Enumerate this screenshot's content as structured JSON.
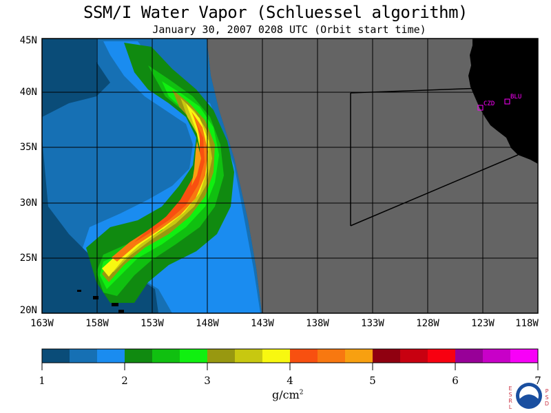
{
  "title": "SSM/I Water Vapor (Schluessel algorithm)",
  "subtitle": "January 30, 2007  0208 UTC  (Orbit start time)",
  "lat_labels": [
    "45N",
    "40N",
    "35N",
    "30N",
    "25N",
    "20N"
  ],
  "lon_labels": [
    "163W",
    "158W",
    "153W",
    "148W",
    "143W",
    "138W",
    "133W",
    "128W",
    "123W",
    "118W"
  ],
  "colorbar": {
    "tick_labels": [
      "1",
      "2",
      "3",
      "4",
      "5",
      "6",
      "7"
    ],
    "unit": "g/cm",
    "unit_exp": "2",
    "colors": [
      "#0a4c78",
      "#1670b4",
      "#1a8cf0",
      "#108a10",
      "#10c010",
      "#10f010",
      "#989810",
      "#c8c810",
      "#f8f810",
      "#f85010",
      "#f87810",
      "#f8a010",
      "#900010",
      "#c80010",
      "#f80010",
      "#980098",
      "#c800c8",
      "#f800f8"
    ]
  },
  "stations": [
    {
      "label": "BLU",
      "lon": -120.8,
      "lat": 39.3
    },
    {
      "label": "CZD",
      "lon": -123.0,
      "lat": 38.6
    }
  ],
  "logo": {
    "org": "NOAA",
    "left_letters": [
      "E",
      "S",
      "R",
      "L"
    ],
    "right_letters": [
      "P",
      "S",
      "D"
    ]
  },
  "colors": {
    "no_data": "#646464",
    "land": "#000000",
    "grid": "#000000",
    "station": "#ff00ff"
  }
}
